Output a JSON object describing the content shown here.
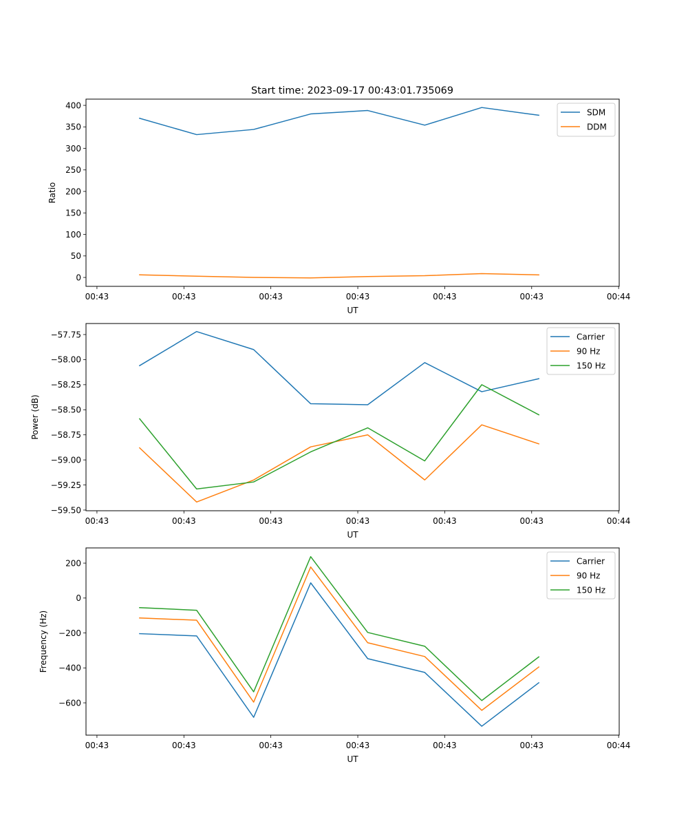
{
  "figure": {
    "title": "Start time: 2023-09-17 00:43:01.735069"
  },
  "chart_data": [
    {
      "type": "line",
      "title": "Start time: 2023-09-17 00:43:01.735069",
      "xlabel": "UT",
      "ylabel": "Ratio",
      "x": [
        0,
        1,
        2,
        3,
        4,
        5,
        6,
        7
      ],
      "xlim": [
        -0.94,
        8.41
      ],
      "xticks": [
        -0.748,
        0.777,
        2.301,
        3.826,
        5.35,
        6.875,
        8.4
      ],
      "xtick_labels": [
        "00:43",
        "00:43",
        "00:43",
        "00:43",
        "00:43",
        "00:43",
        "00:44"
      ],
      "ylim": [
        -20.7,
        414.5
      ],
      "yticks": [
        0,
        50,
        100,
        150,
        200,
        250,
        300,
        350,
        400
      ],
      "ytick_labels": [
        "0",
        "50",
        "100",
        "150",
        "200",
        "250",
        "300",
        "350",
        "400"
      ],
      "legend_position": "top-right",
      "grid": false,
      "series": [
        {
          "name": "SDM",
          "color": "#1f77b4",
          "values": [
            370,
            332,
            344,
            380,
            388,
            354,
            395,
            377
          ]
        },
        {
          "name": "DDM",
          "color": "#ff7f0e",
          "values": [
            6,
            3,
            0,
            -1,
            2,
            4,
            9,
            6
          ]
        }
      ]
    },
    {
      "type": "line",
      "title": "",
      "xlabel": "UT",
      "ylabel": "Power (dB)",
      "x": [
        0,
        1,
        2,
        3,
        4,
        5,
        6,
        7
      ],
      "xlim": [
        -0.94,
        8.41
      ],
      "xticks": [
        -0.748,
        0.777,
        2.301,
        3.826,
        5.35,
        6.875,
        8.4
      ],
      "xtick_labels": [
        "00:43",
        "00:43",
        "00:43",
        "00:43",
        "00:43",
        "00:43",
        "00:44"
      ],
      "ylim": [
        -59.507,
        -57.64
      ],
      "yticks": [
        -59.5,
        -59.25,
        -59.0,
        -58.75,
        -58.5,
        -58.25,
        -58.0,
        -57.75
      ],
      "ytick_labels": [
        "−59.50",
        "−59.25",
        "−59.00",
        "−58.75",
        "−58.50",
        "−58.25",
        "−58.00",
        "−57.75"
      ],
      "legend_position": "top-right",
      "grid": false,
      "series": [
        {
          "name": "Carrier",
          "color": "#1f77b4",
          "values": [
            -58.06,
            -57.72,
            -57.9,
            -58.44,
            -58.45,
            -58.03,
            -58.32,
            -58.19
          ]
        },
        {
          "name": "90 Hz",
          "color": "#ff7f0e",
          "values": [
            -58.88,
            -59.42,
            -59.2,
            -58.87,
            -58.75,
            -59.2,
            -58.65,
            -58.84
          ]
        },
        {
          "name": "150 Hz",
          "color": "#2ca02c",
          "values": [
            -58.59,
            -59.29,
            -59.22,
            -58.92,
            -58.68,
            -59.01,
            -58.25,
            -58.55
          ]
        }
      ]
    },
    {
      "type": "line",
      "title": "",
      "xlabel": "UT",
      "ylabel": "Frequency (Hz)",
      "x": [
        0,
        1,
        2,
        3,
        4,
        5,
        6,
        7
      ],
      "xlim": [
        -0.94,
        8.41
      ],
      "xticks": [
        -0.748,
        0.777,
        2.301,
        3.826,
        5.35,
        6.875,
        8.4
      ],
      "xtick_labels": [
        "00:43",
        "00:43",
        "00:43",
        "00:43",
        "00:43",
        "00:43",
        "00:44"
      ],
      "ylim": [
        -785,
        287
      ],
      "yticks": [
        -600,
        -400,
        -200,
        0,
        200
      ],
      "ytick_labels": [
        "−600",
        "−400",
        "−200",
        "0",
        "200"
      ],
      "legend_position": "top-right",
      "grid": false,
      "series": [
        {
          "name": "Carrier",
          "color": "#1f77b4",
          "values": [
            -204,
            -217,
            -683,
            87,
            -347,
            -426,
            -734,
            -485
          ]
        },
        {
          "name": "90 Hz",
          "color": "#ff7f0e",
          "values": [
            -114,
            -127,
            -596,
            178,
            -256,
            -335,
            -643,
            -395
          ]
        },
        {
          "name": "150 Hz",
          "color": "#2ca02c",
          "values": [
            -55,
            -70,
            -537,
            237,
            -197,
            -276,
            -587,
            -337
          ]
        }
      ]
    }
  ]
}
